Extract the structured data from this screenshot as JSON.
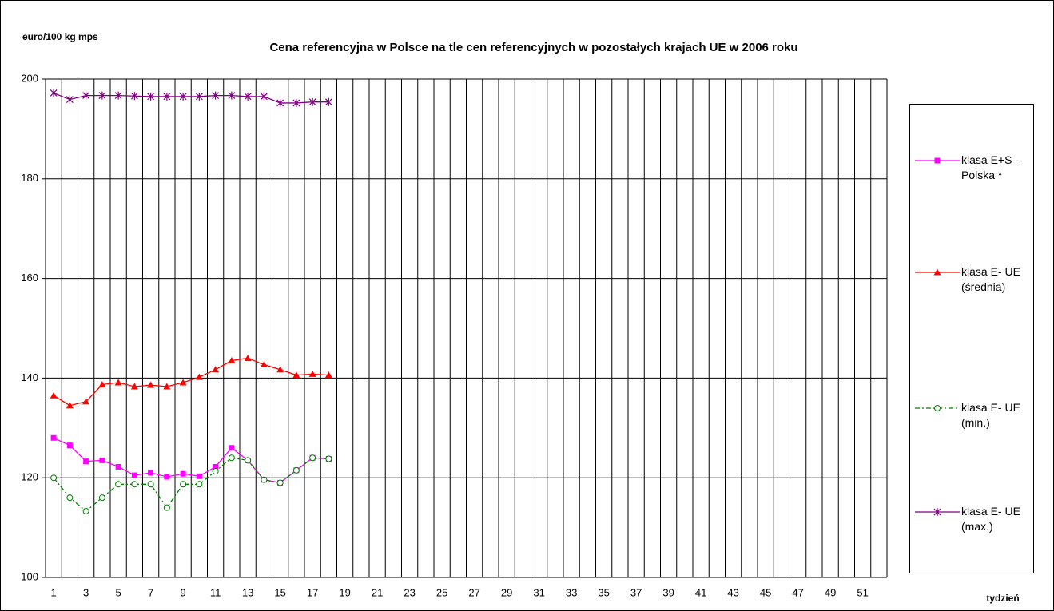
{
  "chart_data": {
    "type": "line",
    "title": "Cena referencyjna w Polsce na tle cen referencyjnych w pozostałych krajach UE w 2006 roku",
    "y_label": "euro/100 kg mps",
    "x_label": "tydzień",
    "categories": [
      "1",
      null,
      "3",
      null,
      "5",
      null,
      "7",
      null,
      "9",
      null,
      "11",
      null,
      "13",
      null,
      "15",
      null,
      "17",
      null,
      "19",
      null,
      "21",
      null,
      "23",
      null,
      "25",
      null,
      "27",
      null,
      "29",
      null,
      "31",
      null,
      "33",
      null,
      "35",
      null,
      "37",
      null,
      "39",
      null,
      "41",
      null,
      "43",
      null,
      "45",
      null,
      "47",
      null,
      "49",
      null,
      "51",
      null
    ],
    "ylim": [
      100,
      200
    ],
    "yticks": [
      100,
      120,
      140,
      160,
      180,
      200
    ],
    "grid": true,
    "legend": "right",
    "series": [
      {
        "name": "klasa E+S - Polska *",
        "color": "#ff00ff",
        "marker": "square",
        "dash": "solid",
        "values": [
          128,
          126.5,
          123.3,
          123.5,
          122.2,
          120.5,
          121,
          120.2,
          120.8,
          120.3,
          122.2,
          126,
          123.5,
          119.6,
          119,
          121.5,
          124,
          123.8,
          null,
          null,
          null,
          null,
          null,
          null,
          null,
          null,
          null,
          null,
          null,
          null,
          null,
          null,
          null,
          null,
          null,
          null,
          null,
          null,
          null,
          null,
          null,
          null,
          null,
          null,
          null,
          null,
          null,
          null,
          null,
          null,
          null,
          null
        ]
      },
      {
        "name": "klasa E- UE (średnia)",
        "color": "#ff0000",
        "marker": "triangle",
        "dash": "solid",
        "values": [
          136.5,
          134.5,
          135.3,
          138.7,
          139.1,
          138.3,
          138.6,
          138.3,
          139.1,
          140.2,
          141.7,
          143.5,
          144,
          142.7,
          141.7,
          140.6,
          140.8,
          140.6,
          null,
          null,
          null,
          null,
          null,
          null,
          null,
          null,
          null,
          null,
          null,
          null,
          null,
          null,
          null,
          null,
          null,
          null,
          null,
          null,
          null,
          null,
          null,
          null,
          null,
          null,
          null,
          null,
          null,
          null,
          null,
          null,
          null,
          null
        ]
      },
      {
        "name": "klasa E- UE (min.)",
        "color": "#008000",
        "marker": "circle",
        "dash": "dashdot",
        "values": [
          120,
          116,
          113.3,
          116,
          118.7,
          118.7,
          118.7,
          114,
          118.7,
          118.7,
          121.3,
          124,
          123.5,
          119.6,
          119,
          121.5,
          124,
          123.8,
          null,
          null,
          null,
          null,
          null,
          null,
          null,
          null,
          null,
          null,
          null,
          null,
          null,
          null,
          null,
          null,
          null,
          null,
          null,
          null,
          null,
          null,
          null,
          null,
          null,
          null,
          null,
          null,
          null,
          null,
          null,
          null,
          null,
          null
        ]
      },
      {
        "name": "klasa E- UE (max.)",
        "color": "#800080",
        "marker": "star",
        "dash": "solid",
        "values": [
          197.2,
          195.9,
          196.7,
          196.7,
          196.7,
          196.6,
          196.5,
          196.5,
          196.5,
          196.5,
          196.7,
          196.7,
          196.5,
          196.5,
          195.2,
          195.2,
          195.4,
          195.4,
          null,
          null,
          null,
          null,
          null,
          null,
          null,
          null,
          null,
          null,
          null,
          null,
          null,
          null,
          null,
          null,
          null,
          null,
          null,
          null,
          null,
          null,
          null,
          null,
          null,
          null,
          null,
          null,
          null,
          null,
          null,
          null,
          null,
          null
        ]
      }
    ]
  }
}
